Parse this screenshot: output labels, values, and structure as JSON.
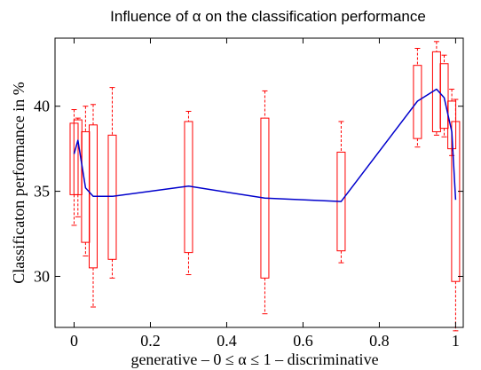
{
  "chart_data": {
    "type": "line",
    "title": "Influence of α on the classification performance",
    "xlabel": "generative – 0 ≤ α ≤ 1 – discriminative",
    "ylabel": "Classificaton performance in %",
    "xlim": [
      -0.05,
      1.02
    ],
    "ylim": [
      27.0,
      44.0
    ],
    "x_ticks": [
      0,
      0.2,
      0.4,
      0.6,
      0.8,
      1
    ],
    "x_tick_labels": [
      "0",
      "0.2",
      "0.4",
      "0.6",
      "0.8",
      "1"
    ],
    "y_ticks": [
      30,
      35,
      40
    ],
    "y_tick_labels": [
      "30",
      "35",
      "40"
    ],
    "grid": false,
    "colors": {
      "line": "#0000cc",
      "box": "#ff0000",
      "axis": "#000000"
    },
    "series": [
      {
        "x": [
          0,
          0.01,
          0.03,
          0.05,
          0.1,
          0.3,
          0.5,
          0.7,
          0.9,
          0.95,
          0.97,
          0.99,
          1.0
        ],
        "values": [
          37.2,
          38.0,
          35.2,
          34.7,
          34.7,
          35.3,
          34.6,
          34.4,
          40.3,
          41.0,
          40.5,
          38.5,
          34.5
        ]
      }
    ],
    "boxes": [
      {
        "x": 0.0,
        "whisker_low": 33.0,
        "q1": 34.8,
        "q3": 39.0,
        "whisker_high": 39.8
      },
      {
        "x": 0.01,
        "whisker_low": 33.5,
        "q1": 34.8,
        "q3": 39.2,
        "whisker_high": 39.3
      },
      {
        "x": 0.03,
        "whisker_low": 31.2,
        "q1": 32.0,
        "q3": 38.5,
        "whisker_high": 40.0
      },
      {
        "x": 0.05,
        "whisker_low": 28.2,
        "q1": 30.5,
        "q3": 38.9,
        "whisker_high": 40.1
      },
      {
        "x": 0.1,
        "whisker_low": 29.9,
        "q1": 31.0,
        "q3": 38.3,
        "whisker_high": 41.1
      },
      {
        "x": 0.3,
        "whisker_low": 30.1,
        "q1": 31.4,
        "q3": 39.1,
        "whisker_high": 39.7
      },
      {
        "x": 0.5,
        "whisker_low": 27.8,
        "q1": 29.9,
        "q3": 39.3,
        "whisker_high": 40.9
      },
      {
        "x": 0.7,
        "whisker_low": 30.8,
        "q1": 31.5,
        "q3": 37.3,
        "whisker_high": 39.1
      },
      {
        "x": 0.9,
        "whisker_low": 37.6,
        "q1": 38.1,
        "q3": 42.4,
        "whisker_high": 43.4
      },
      {
        "x": 0.95,
        "whisker_low": 38.3,
        "q1": 38.5,
        "q3": 43.2,
        "whisker_high": 43.8
      },
      {
        "x": 0.97,
        "whisker_low": 38.2,
        "q1": 38.7,
        "q3": 42.5,
        "whisker_high": 43.0
      },
      {
        "x": 0.99,
        "whisker_low": 37.1,
        "q1": 37.5,
        "q3": 40.3,
        "whisker_high": 41.0
      },
      {
        "x": 1.0,
        "whisker_low": 26.8,
        "q1": 29.7,
        "q3": 39.1,
        "whisker_high": 40.4
      }
    ]
  }
}
